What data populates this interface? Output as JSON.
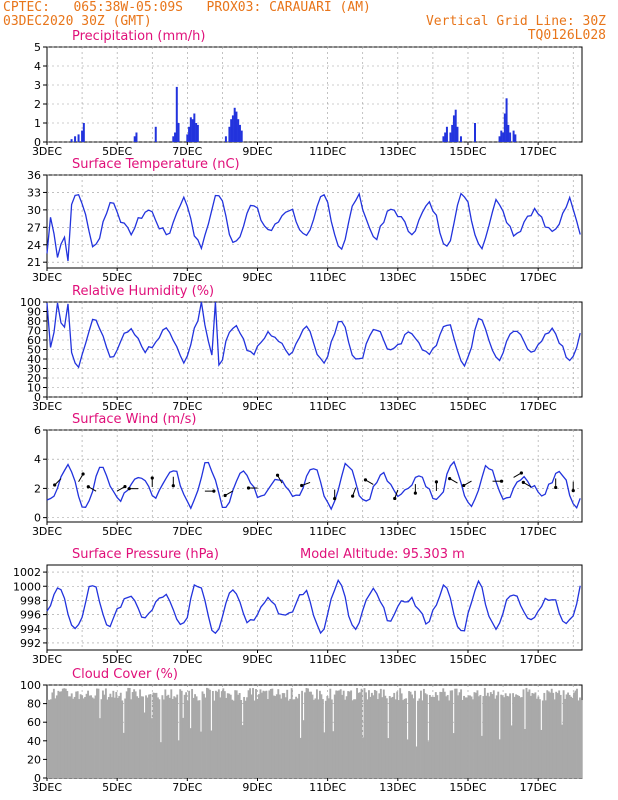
{
  "header": {
    "line1_left": "CPTEC:   065:38W-05:09S   PROX03: CARAUARI (AM)",
    "line2_left": "03DEC2020 30Z (GMT)",
    "line2_right": "Vertical Grid Line: 30Z",
    "line3_right": "TQ0126L028"
  },
  "colors": {
    "header": "#e8751a",
    "title": "#e0107a",
    "line": "#2233dd",
    "cloud": "#a9a9a9"
  },
  "x_tick_labels": [
    "3DEC",
    "5DEC",
    "7DEC",
    "9DEC",
    "11DEC",
    "13DEC",
    "15DEC",
    "17DEC"
  ],
  "chart_data": [
    {
      "type": "bar",
      "title": "Precipitation (mm/h)",
      "ylim": [
        0,
        5
      ],
      "yticks": [
        0,
        1,
        2,
        3,
        4,
        5
      ],
      "x_unit": "days after 3DEC 00Z",
      "points": [
        [
          0.7,
          0.15
        ],
        [
          0.8,
          0.3
        ],
        [
          0.9,
          0.4
        ],
        [
          1.0,
          0.6
        ],
        [
          1.05,
          1.0
        ],
        [
          2.5,
          0.3
        ],
        [
          2.55,
          0.5
        ],
        [
          3.1,
          0.8
        ],
        [
          3.6,
          0.3
        ],
        [
          3.65,
          0.5
        ],
        [
          3.7,
          2.9
        ],
        [
          3.75,
          1.0
        ],
        [
          4.0,
          0.4
        ],
        [
          4.05,
          0.8
        ],
        [
          4.1,
          1.3
        ],
        [
          4.15,
          1.2
        ],
        [
          4.2,
          1.5
        ],
        [
          4.25,
          1.0
        ],
        [
          4.3,
          0.9
        ],
        [
          5.1,
          0.3
        ],
        [
          5.2,
          0.8
        ],
        [
          5.25,
          1.2
        ],
        [
          5.3,
          1.4
        ],
        [
          5.35,
          1.8
        ],
        [
          5.4,
          1.6
        ],
        [
          5.45,
          1.2
        ],
        [
          5.5,
          0.9
        ],
        [
          5.55,
          0.6
        ],
        [
          11.3,
          0.3
        ],
        [
          11.35,
          0.5
        ],
        [
          11.4,
          0.8
        ],
        [
          11.5,
          0.5
        ],
        [
          11.55,
          0.9
        ],
        [
          11.6,
          1.4
        ],
        [
          11.65,
          1.7
        ],
        [
          11.7,
          0.8
        ],
        [
          11.8,
          0.3
        ],
        [
          12.2,
          1.0
        ],
        [
          12.9,
          0.3
        ],
        [
          12.95,
          0.6
        ],
        [
          13.0,
          0.5
        ],
        [
          13.05,
          1.5
        ],
        [
          13.1,
          2.3
        ],
        [
          13.15,
          0.9
        ],
        [
          13.2,
          0.5
        ],
        [
          13.3,
          0.6
        ],
        [
          13.35,
          0.4
        ]
      ]
    },
    {
      "type": "line",
      "title": "Surface Temperature (nC)",
      "ylim": [
        20,
        36
      ],
      "yticks": [
        21,
        24,
        27,
        30,
        33,
        36
      ],
      "mean": 28.2,
      "amplitude": 4.2,
      "phase_day": 0.62,
      "overrides": [
        [
          0.0,
          22.5
        ],
        [
          0.3,
          21.8
        ],
        [
          0.6,
          21.2
        ]
      ]
    },
    {
      "type": "line",
      "title": "Relative Humidity (%)",
      "ylim": [
        0,
        100
      ],
      "yticks": [
        0,
        10,
        20,
        30,
        40,
        50,
        60,
        70,
        80,
        90,
        100
      ],
      "mean": 58,
      "amplitude": 22,
      "phase_day": 0.12,
      "overrides": [
        [
          0.0,
          99
        ],
        [
          0.3,
          99
        ],
        [
          0.6,
          98
        ],
        [
          4.4,
          100
        ],
        [
          4.8,
          100
        ]
      ]
    },
    {
      "type": "line",
      "title": "Surface Wind (m/s)",
      "ylim": [
        -0.3,
        6
      ],
      "yticks": [
        0,
        2,
        4,
        6
      ],
      "mean": 2.2,
      "amplitude": 1.4,
      "phase_day": 0.33,
      "arrows": [
        [
          0.4,
          225
        ],
        [
          0.9,
          30
        ],
        [
          1.4,
          300
        ],
        [
          2.0,
          60
        ],
        [
          2.6,
          270
        ],
        [
          3.0,
          0
        ],
        [
          3.6,
          180
        ],
        [
          4.5,
          90
        ],
        [
          5.3,
          240
        ],
        [
          6.0,
          270
        ],
        [
          6.7,
          330
        ],
        [
          7.5,
          250
        ],
        [
          8.2,
          180
        ],
        [
          8.8,
          200
        ],
        [
          9.3,
          300
        ],
        [
          10.0,
          200
        ],
        [
          10.5,
          180
        ],
        [
          11.1,
          0
        ],
        [
          11.7,
          300
        ],
        [
          12.1,
          240
        ],
        [
          12.7,
          90
        ],
        [
          13.3,
          60
        ],
        [
          13.8,
          300
        ],
        [
          14.5,
          180
        ],
        [
          15.0,
          180
        ]
      ]
    },
    {
      "type": "line",
      "title": "Surface Pressure (hPa)",
      "subtitle": "Model Altitude: 95.303 m",
      "ylim": [
        991,
        1003
      ],
      "yticks": [
        992,
        994,
        996,
        998,
        1000,
        1002
      ],
      "mean": 997,
      "amplitude": 3.2,
      "phase_day": 0.05
    },
    {
      "type": "area",
      "title": "Cloud Cover (%)",
      "ylim": [
        0,
        100
      ],
      "yticks": [
        0,
        20,
        40,
        60,
        80,
        100
      ],
      "mean": 90,
      "amplitude": 10
    }
  ]
}
